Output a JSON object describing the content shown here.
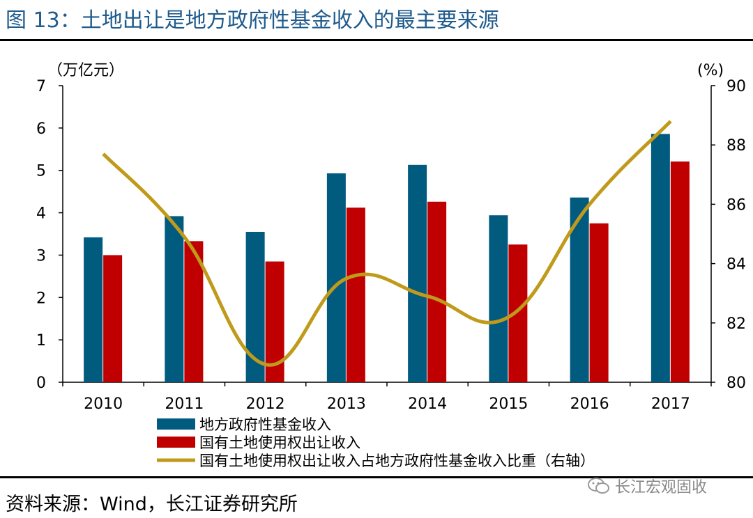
{
  "figure_title": "图 13：土地出让是地方政府性基金收入的最主要来源",
  "source": "资料来源：Wind，长江证券研究所",
  "watermark": "长江宏观固收",
  "colors": {
    "series1": "#005b7f",
    "series2": "#c00000",
    "series3": "#c09a1a",
    "title": "#1f5b8c"
  },
  "chart_data": {
    "type": "bar",
    "categories": [
      "2010",
      "2011",
      "2012",
      "2013",
      "2014",
      "2015",
      "2016",
      "2017"
    ],
    "ylabel": "（万亿元）",
    "y2label": "(%)",
    "ylim": [
      0,
      7
    ],
    "y2lim": [
      80,
      90
    ],
    "yticks": [
      "0",
      "1",
      "2",
      "3",
      "4",
      "5",
      "6",
      "7"
    ],
    "y2ticks": [
      "80",
      "82",
      "84",
      "86",
      "88",
      "90"
    ],
    "grid": false,
    "legend_position": "bottom",
    "series": [
      {
        "name": "地方政府性基金收入",
        "type": "bar",
        "axis": "left",
        "values": [
          3.42,
          3.92,
          3.55,
          4.93,
          5.13,
          3.94,
          4.36,
          5.86
        ]
      },
      {
        "name": "国有土地使用权出让收入",
        "type": "bar",
        "axis": "left",
        "values": [
          3.0,
          3.33,
          2.85,
          4.12,
          4.26,
          3.25,
          3.75,
          5.21
        ]
      },
      {
        "name": "国有土地使用权出让收入占地方政府性基金收入比重（右轴）",
        "type": "line",
        "axis": "right",
        "values": [
          87.7,
          84.9,
          80.6,
          83.5,
          82.9,
          82.2,
          86.0,
          88.8
        ]
      }
    ]
  }
}
